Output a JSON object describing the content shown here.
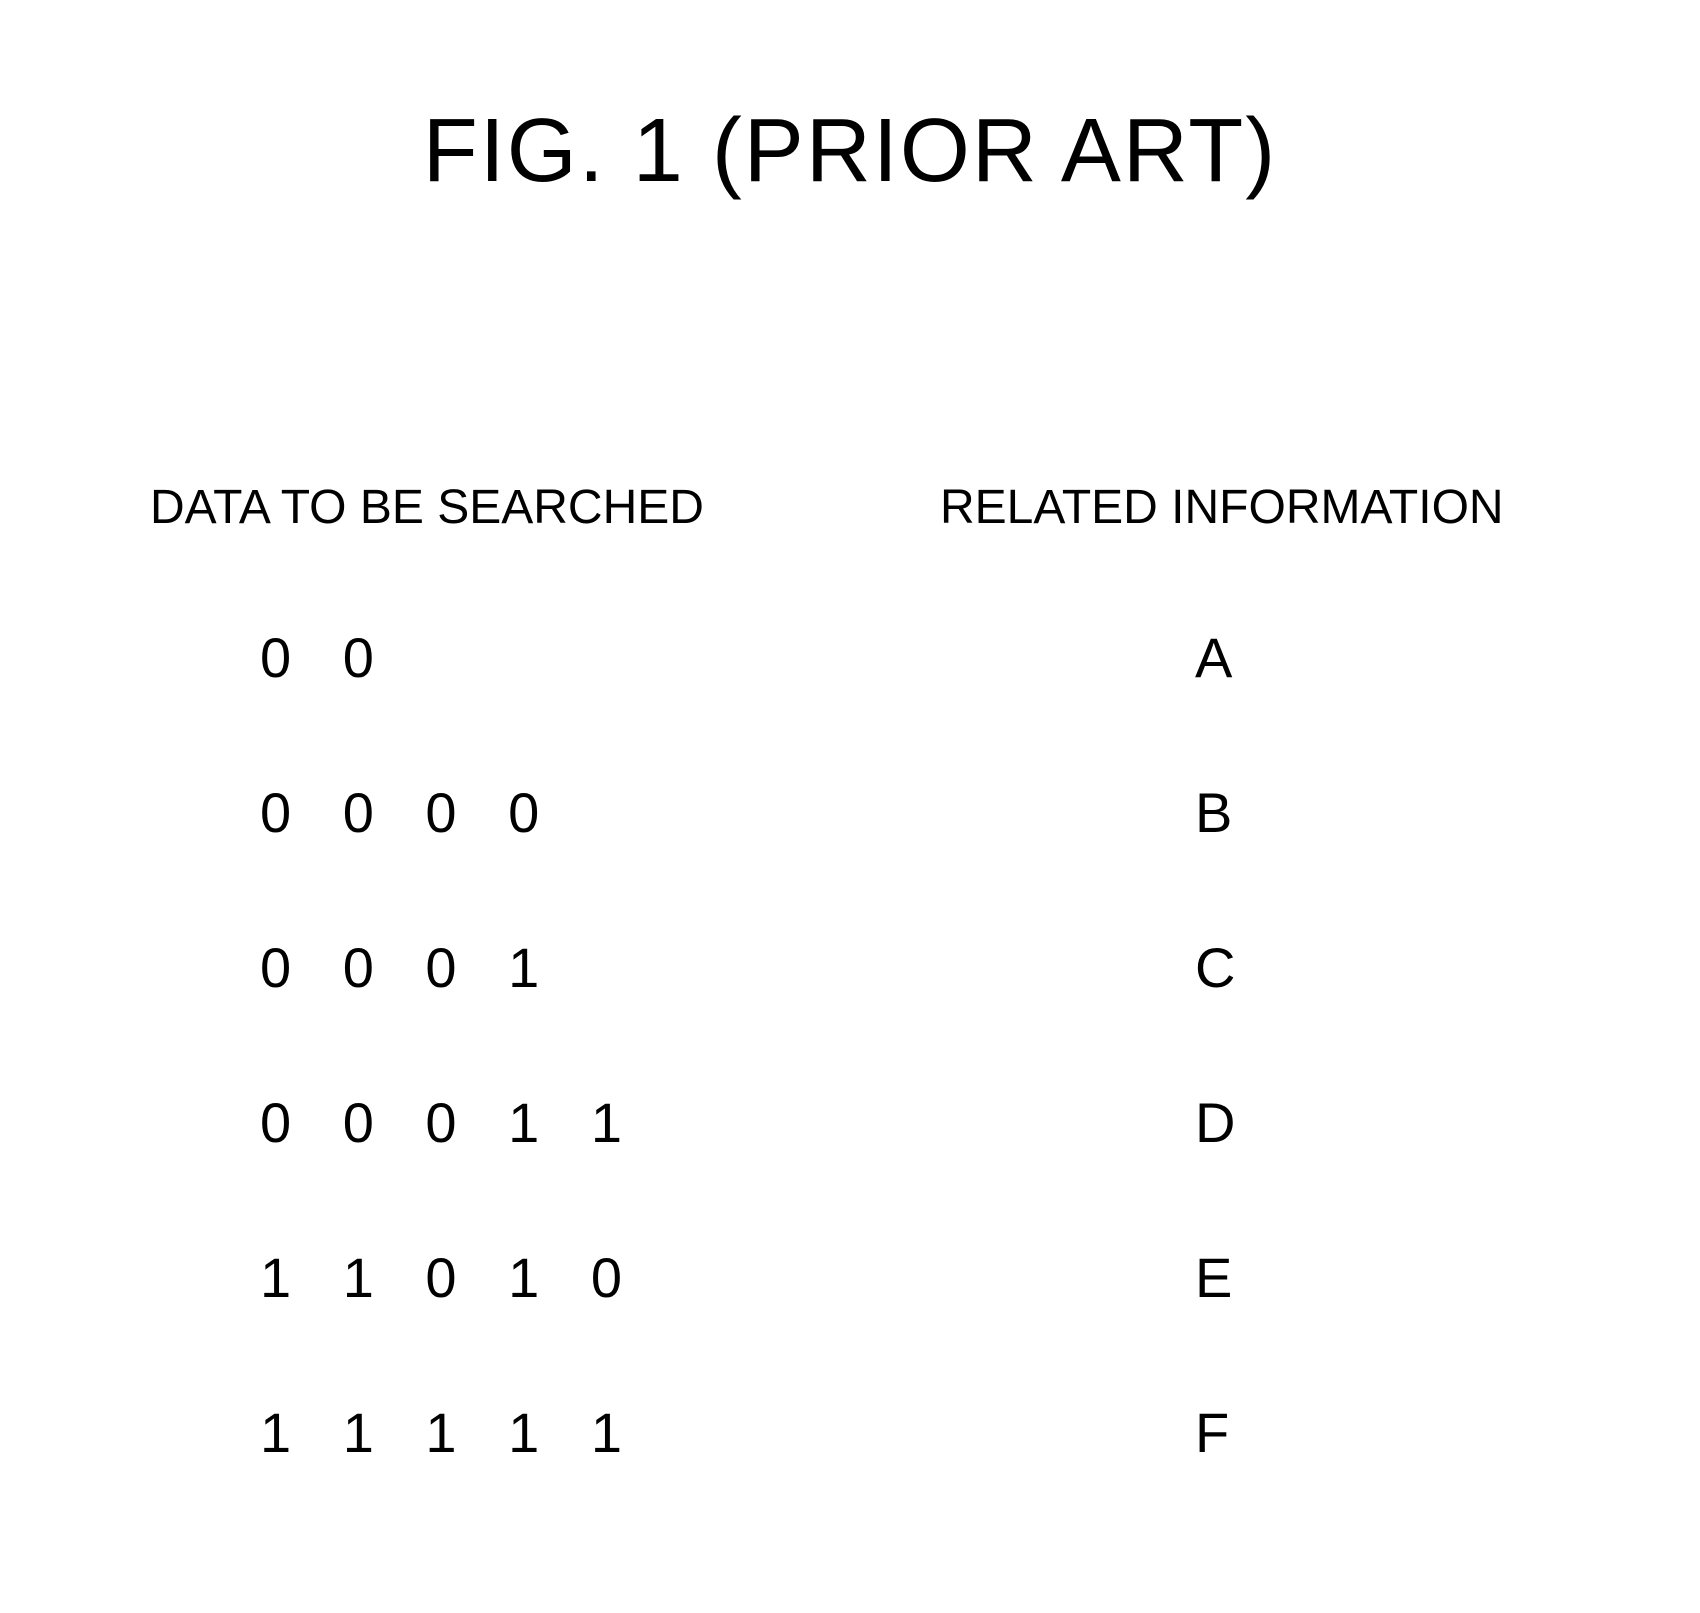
{
  "title": "FIG. 1    (PRIOR ART)",
  "headers": {
    "left": "DATA TO BE SEARCHED",
    "right": "RELATED INFORMATION"
  },
  "rows": [
    {
      "data": "0 0",
      "info": "A"
    },
    {
      "data": "0 0 0 0",
      "info": "B"
    },
    {
      "data": "0 0 0 1",
      "info": "C"
    },
    {
      "data": "0 0 0 1 1",
      "info": "D"
    },
    {
      "data": "1 1 0 1 0",
      "info": "E"
    },
    {
      "data": "1 1 1 1 1",
      "info": "F"
    }
  ],
  "style": {
    "background_color": "#ffffff",
    "text_color": "#000000",
    "title_fontsize": 90,
    "header_fontsize": 48,
    "cell_fontsize": 56,
    "row_spacing": 155
  }
}
